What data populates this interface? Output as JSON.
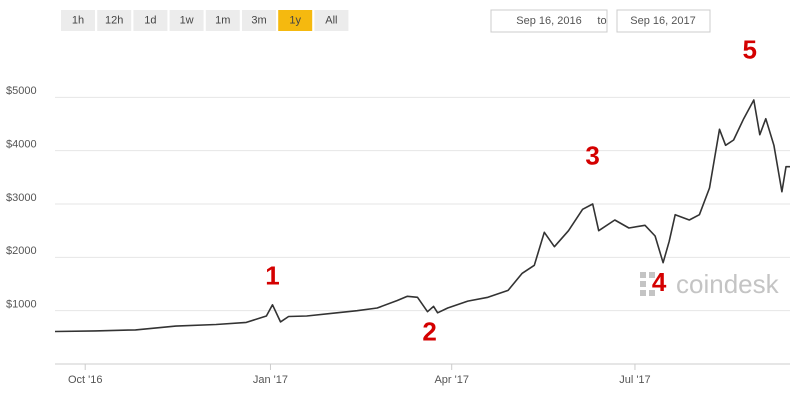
{
  "controls": {
    "ranges": [
      "1h",
      "12h",
      "1d",
      "1w",
      "1m",
      "3m",
      "1y",
      "All"
    ],
    "active": 6,
    "date_from": "Sep 16, 2016",
    "to_label": "to",
    "date_to": "Sep 16, 2017"
  },
  "watermark": "coindesk",
  "chart_data": {
    "type": "line",
    "color": "#333333",
    "grid": true,
    "x": [
      0,
      20,
      40,
      60,
      80,
      95,
      105,
      108,
      112,
      116,
      125,
      140,
      150,
      160,
      170,
      175,
      180,
      185,
      188,
      190,
      195,
      205,
      215,
      225,
      232,
      238,
      243,
      248,
      255,
      262,
      267,
      270,
      278,
      285,
      293,
      298,
      302,
      305,
      308,
      315,
      320,
      325,
      330,
      333,
      337,
      342,
      347,
      350,
      353,
      357,
      361,
      363,
      365
    ],
    "values": [
      610,
      620,
      640,
      710,
      740,
      780,
      900,
      1110,
      790,
      890,
      900,
      960,
      1000,
      1050,
      1190,
      1270,
      1250,
      980,
      1080,
      960,
      1050,
      1180,
      1250,
      1380,
      1700,
      1850,
      2470,
      2200,
      2500,
      2900,
      3000,
      2500,
      2700,
      2550,
      2600,
      2400,
      1900,
      2300,
      2800,
      2700,
      2800,
      3300,
      4400,
      4100,
      4200,
      4600,
      4950,
      4300,
      4600,
      4100,
      3230,
      3700,
      3700
    ],
    "xlim": [
      0,
      365
    ],
    "xticks": [
      {
        "value": 15,
        "label": "Oct '16"
      },
      {
        "value": 107,
        "label": "Jan '17"
      },
      {
        "value": 197,
        "label": "Apr '17"
      },
      {
        "value": 288,
        "label": "Jul '17"
      }
    ],
    "ylim": [
      0,
      6000
    ],
    "yticks": [
      {
        "value": 1000,
        "label": "$1000"
      },
      {
        "value": 2000,
        "label": "$2000"
      },
      {
        "value": 3000,
        "label": "$3000"
      },
      {
        "value": 4000,
        "label": "$4000"
      },
      {
        "value": 5000,
        "label": "$5000"
      }
    ],
    "annotations": [
      {
        "text": "1",
        "x": 108,
        "y": 1620
      },
      {
        "text": "2",
        "x": 186,
        "y": 570
      },
      {
        "text": "3",
        "x": 267,
        "y": 3870
      },
      {
        "text": "4",
        "x": 300,
        "y": 1500
      },
      {
        "text": "5",
        "x": 345,
        "y": 5860
      }
    ]
  }
}
